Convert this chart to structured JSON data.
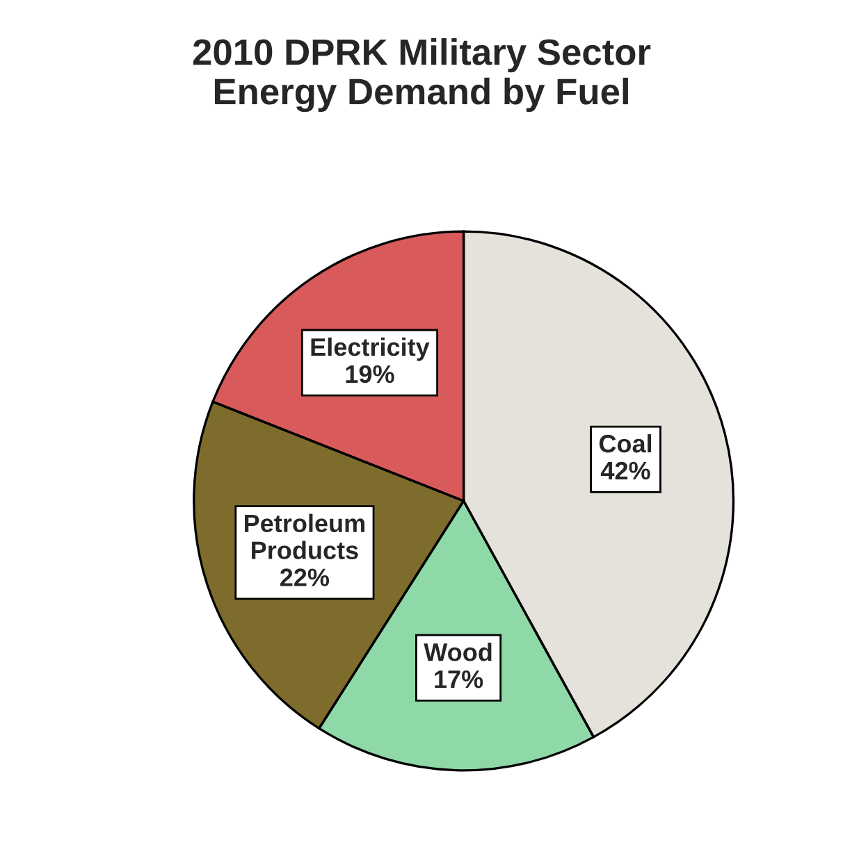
{
  "chart_data": {
    "type": "pie",
    "title": "2010 DPRK Military Sector\nEnergy Demand by Fuel",
    "categories": [
      "Coal",
      "Wood",
      "Petroleum Products",
      "Electricity"
    ],
    "values": [
      42,
      17,
      22,
      19
    ],
    "value_labels": [
      "42%",
      "17%",
      "22%",
      "19%"
    ],
    "colors": [
      "#e4e2da",
      "#8fd8a8",
      "#7d6c2c",
      "#d85a5a"
    ],
    "legend": false
  }
}
